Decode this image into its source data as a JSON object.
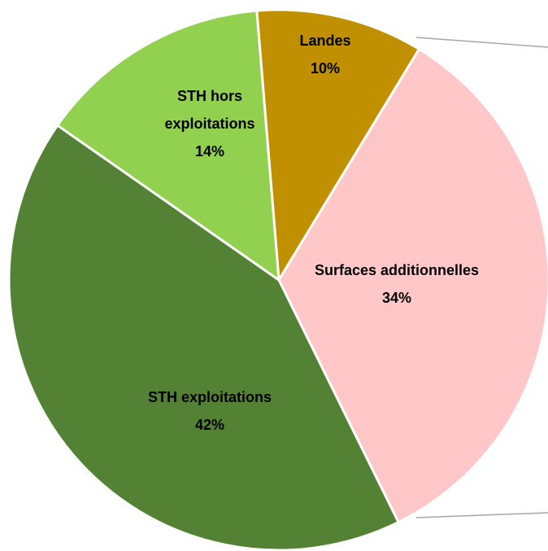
{
  "chart_data": {
    "type": "pie",
    "categories": [
      "Landes",
      "Surfaces additionnelles",
      "STH exploitations",
      "STH hors exploitations"
    ],
    "values": [
      10,
      34,
      42,
      14
    ],
    "value_labels": [
      "10%",
      "34%",
      "42%",
      "14%"
    ],
    "colors": [
      "#c09000",
      "#ffc7c7",
      "#548235",
      "#92d050"
    ]
  }
}
